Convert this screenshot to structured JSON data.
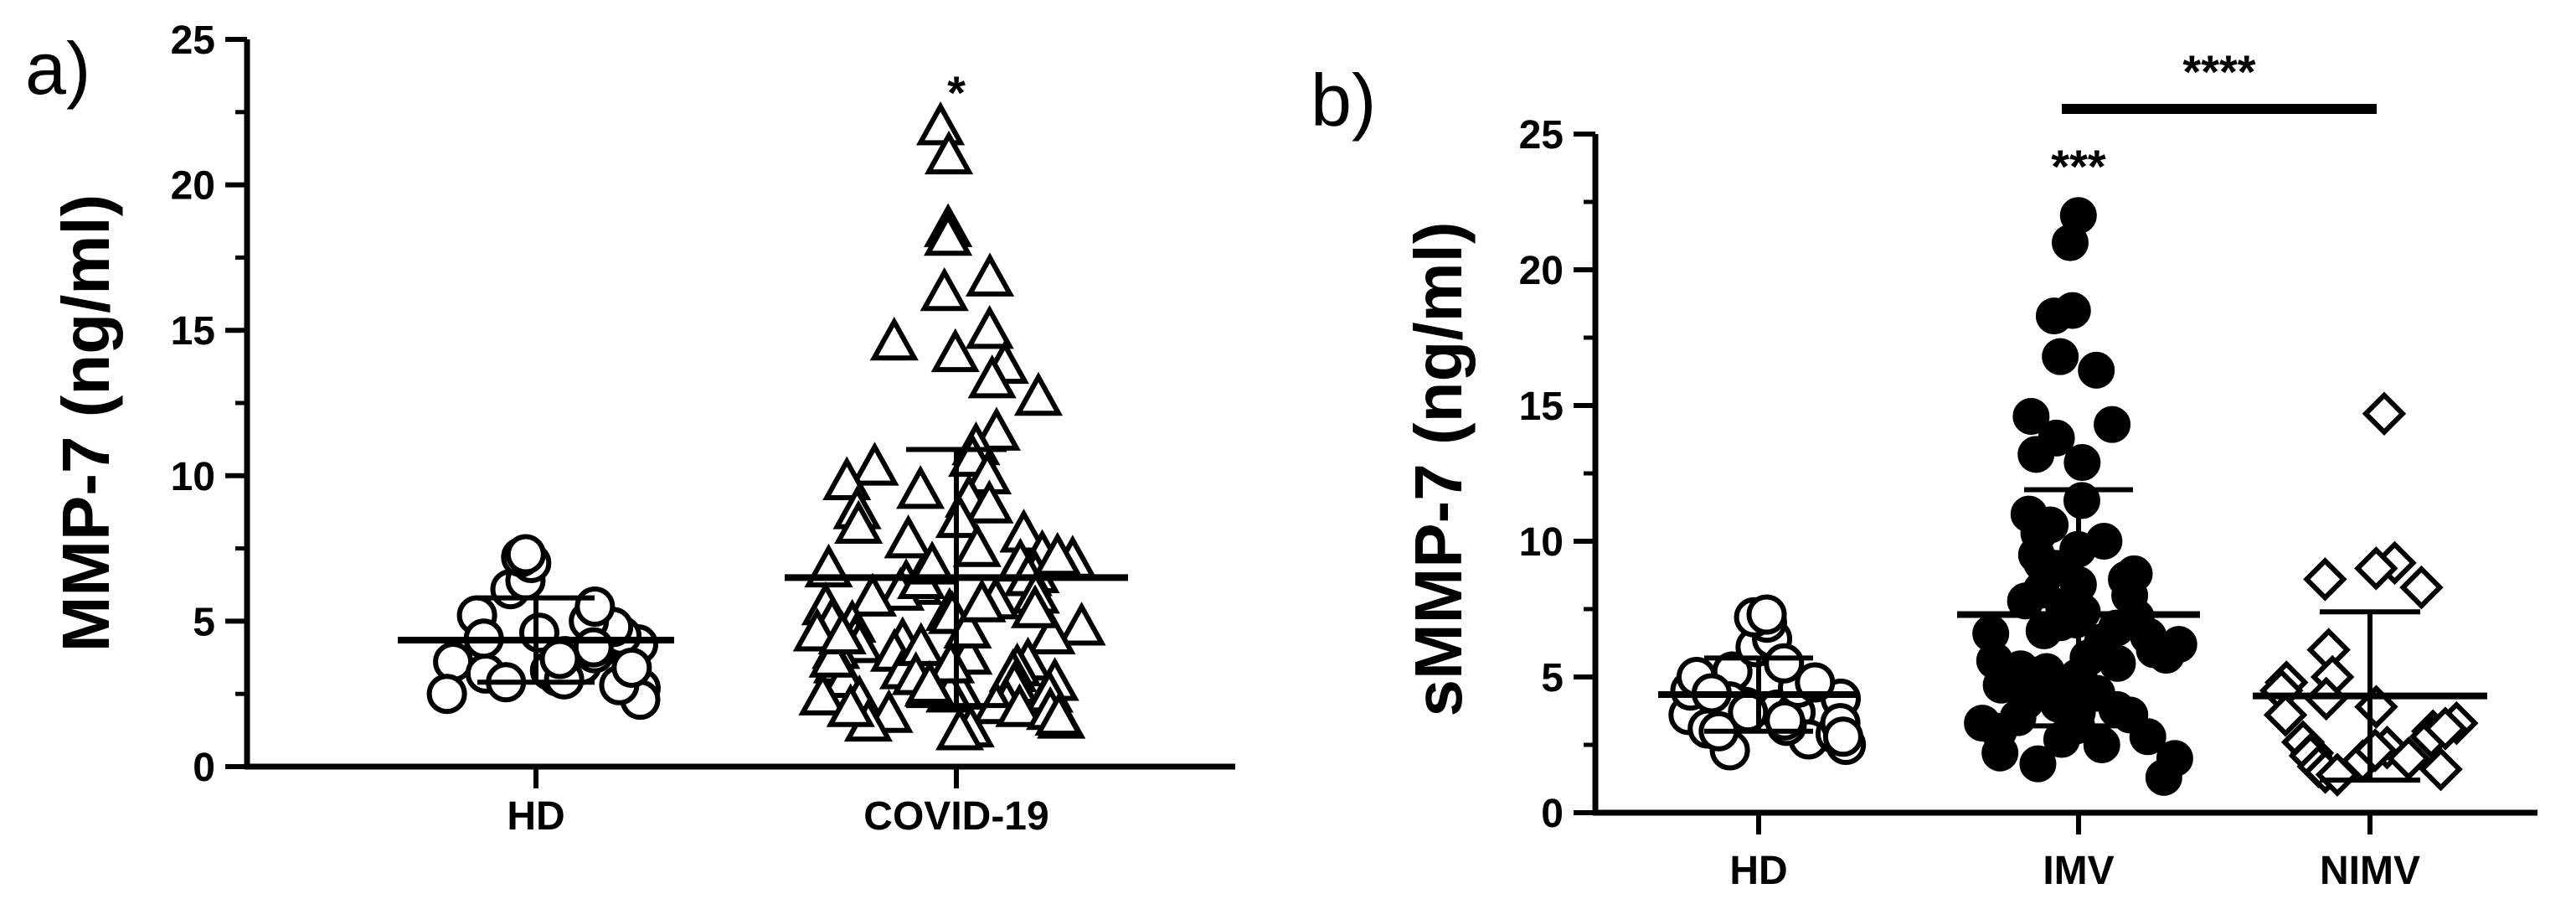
{
  "chart_data": [
    {
      "type": "scatter",
      "panel_label": "a)",
      "ylabel": "MMP-7 (ng/ml)",
      "xlabel": "",
      "ylim": [
        0,
        25
      ],
      "yticks": [
        0,
        5,
        10,
        15,
        20,
        25
      ],
      "ytick_labels": [
        "0",
        "5",
        "10",
        "15",
        "20",
        "25"
      ],
      "categories": [
        "HD",
        "COVID-19"
      ],
      "annotations": [
        {
          "category": "COVID-19",
          "text": "*"
        }
      ],
      "series": [
        {
          "name": "HD",
          "marker": "circle-open",
          "mean": 4.35,
          "sd_upper": 5.8,
          "sd_lower": 2.9,
          "values": [
            3.5,
            3.8,
            4.0,
            3.6,
            3.9,
            2.7,
            3.2,
            2.9,
            3.1,
            4.2,
            4.5,
            4.6,
            4.8,
            5.0,
            5.2,
            4.1,
            3.3,
            2.3,
            2.5,
            2.8,
            3.0,
            3.4,
            6.1,
            6.4,
            7.0,
            7.2,
            7.3,
            5.5,
            3.7,
            4.4
          ]
        },
        {
          "name": "COVID-19",
          "marker": "triangle-open",
          "mean": 6.5,
          "sd_upper": 10.9,
          "sd_lower": 2.1,
          "values": [
            22.0,
            21.0,
            18.5,
            18.2,
            16.8,
            16.3,
            15.0,
            14.6,
            14.2,
            13.8,
            13.3,
            12.7,
            11.5,
            11.0,
            10.6,
            10.3,
            10.0,
            9.8,
            9.5,
            9.2,
            9.0,
            8.8,
            8.5,
            8.3,
            8.0,
            7.8,
            7.5,
            7.3,
            7.1,
            7.0,
            6.8,
            6.6,
            6.5,
            6.3,
            6.2,
            6.0,
            5.8,
            5.7,
            5.5,
            5.3,
            5.2,
            5.0,
            4.9,
            4.8,
            4.6,
            4.5,
            4.4,
            4.3,
            4.2,
            4.0,
            3.9,
            3.8,
            3.6,
            3.5,
            3.4,
            3.3,
            3.2,
            3.0,
            2.9,
            2.8,
            2.7,
            2.6,
            2.5,
            2.4,
            2.3,
            2.2,
            2.1,
            2.0,
            1.9,
            1.8,
            1.6,
            1.5,
            1.3,
            1.2,
            6.4,
            5.9,
            5.4,
            4.7,
            4.1,
            3.7,
            3.1,
            2.5,
            2.0,
            1.7,
            7.2,
            6.9,
            5.6,
            4.5,
            3.5,
            2.8
          ]
        }
      ]
    },
    {
      "type": "scatter",
      "panel_label": "b)",
      "ylabel": "sMMP-7 (ng/ml)",
      "xlabel": "",
      "ylim": [
        0,
        25
      ],
      "yticks": [
        0,
        5,
        10,
        15,
        20,
        25
      ],
      "ytick_labels": [
        "0",
        "5",
        "10",
        "15",
        "20",
        "25"
      ],
      "categories": [
        "HD",
        "IMV",
        "NIMV"
      ],
      "annotations": [
        {
          "category": "IMV",
          "text": "***"
        },
        {
          "from": "IMV",
          "to": "NIMV",
          "text": "****"
        }
      ],
      "series": [
        {
          "name": "HD",
          "marker": "circle-open",
          "mean": 4.35,
          "sd_upper": 5.7,
          "sd_lower": 3.0,
          "values": [
            3.6,
            3.8,
            4.0,
            3.7,
            3.9,
            2.7,
            3.2,
            2.9,
            3.1,
            4.2,
            4.5,
            4.6,
            4.8,
            5.0,
            5.2,
            4.1,
            3.3,
            2.3,
            2.5,
            2.8,
            3.0,
            3.4,
            6.1,
            6.4,
            7.0,
            7.2,
            7.3,
            5.5,
            3.7,
            4.4
          ]
        },
        {
          "name": "IMV",
          "marker": "circle-filled",
          "mean": 7.3,
          "sd_upper": 11.9,
          "sd_lower": 3.2,
          "values": [
            22.0,
            21.0,
            18.5,
            18.3,
            16.8,
            16.3,
            14.6,
            14.3,
            13.8,
            13.2,
            12.9,
            11.5,
            11.0,
            10.6,
            10.3,
            10.0,
            9.7,
            9.5,
            9.2,
            9.0,
            8.8,
            8.6,
            8.4,
            8.2,
            8.0,
            7.8,
            7.6,
            7.4,
            7.2,
            7.0,
            6.8,
            6.6,
            6.5,
            6.3,
            6.1,
            6.0,
            5.8,
            5.6,
            5.5,
            5.3,
            5.1,
            5.0,
            4.8,
            4.6,
            4.5,
            4.4,
            4.3,
            4.1,
            4.0,
            3.8,
            3.6,
            3.5,
            3.3,
            3.0,
            2.7,
            2.5,
            2.2,
            2.0,
            1.8,
            1.3,
            7.1,
            6.7,
            6.2,
            5.7,
            5.2,
            4.7,
            4.2,
            3.7,
            3.2,
            2.8
          ]
        },
        {
          "name": "NIMV",
          "marker": "diamond-open",
          "mean": 4.3,
          "sd_upper": 7.4,
          "sd_lower": 1.2,
          "values": [
            14.7,
            9.2,
            9.0,
            8.6,
            8.3,
            6.0,
            5.0,
            4.8,
            4.5,
            4.2,
            3.9,
            3.6,
            3.3,
            3.0,
            2.8,
            2.6,
            2.4,
            2.2,
            2.1,
            2.0,
            1.9,
            1.7,
            1.6,
            1.5,
            1.4,
            3.1,
            2.3
          ]
        }
      ]
    }
  ]
}
